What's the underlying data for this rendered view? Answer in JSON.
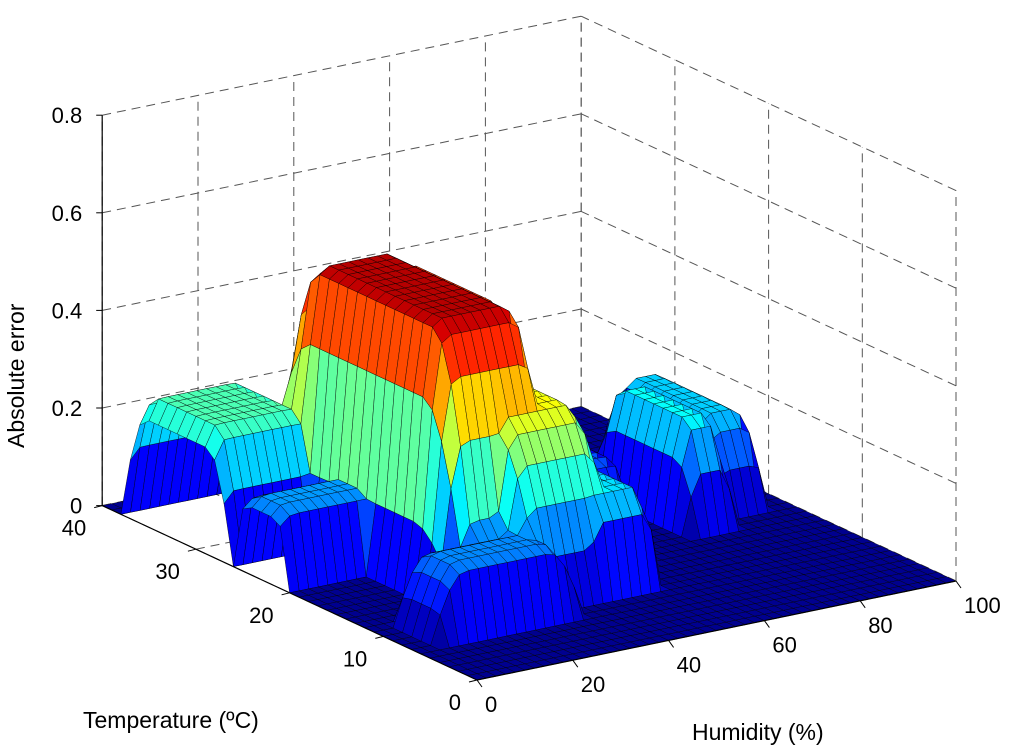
{
  "chart_data": {
    "type": "surface",
    "title": "",
    "xlabel": "Humidity (%)",
    "ylabel": "Temperature (ºC)",
    "zlabel": "Absolute error",
    "x_ticks": [
      "0",
      "20",
      "40",
      "60",
      "80",
      "100"
    ],
    "y_ticks": [
      "0",
      "10",
      "20",
      "30",
      "40"
    ],
    "z_ticks": [
      "0",
      "0.2",
      "0.4",
      "0.6",
      "0.8"
    ],
    "xlim": [
      0,
      100
    ],
    "ylim": [
      0,
      40
    ],
    "zlim": [
      0,
      0.8
    ],
    "grid": true,
    "colormap": "jet",
    "features": [
      {
        "humidity_center": 30,
        "humidity_width": 13,
        "temperature_center": 22,
        "temperature_width": 11,
        "peak_error": 0.55
      },
      {
        "humidity_center": 40,
        "humidity_width": 9,
        "temperature_center": 25,
        "temperature_width": 8,
        "peak_error": 0.5
      },
      {
        "humidity_center": 38,
        "humidity_width": 12,
        "temperature_center": 20,
        "temperature_width": 12,
        "peak_error": 0.36
      },
      {
        "humidity_center": 10,
        "humidity_width": 14,
        "temperature_center": 32,
        "temperature_width": 6,
        "peak_error": 0.26
      },
      {
        "humidity_center": 14,
        "humidity_width": 20,
        "temperature_center": 23,
        "temperature_width": 3,
        "peak_error": 0.16
      },
      {
        "humidity_center": 20,
        "humidity_width": 16,
        "temperature_center": 9,
        "temperature_width": 3,
        "peak_error": 0.15
      },
      {
        "humidity_center": 52,
        "humidity_width": 6,
        "temperature_center": 28,
        "temperature_width": 6,
        "peak_error": 0.25
      },
      {
        "humidity_center": 48,
        "humidity_width": 8,
        "temperature_center": 12,
        "temperature_width": 4,
        "peak_error": 0.2
      },
      {
        "humidity_center": 80,
        "humidity_width": 5,
        "temperature_center": 21,
        "temperature_width": 6,
        "peak_error": 0.22
      },
      {
        "humidity_center": 90,
        "humidity_width": 6,
        "temperature_center": 24,
        "temperature_width": 7,
        "peak_error": 0.19
      },
      {
        "humidity_center": 67,
        "humidity_width": 5,
        "temperature_center": 25,
        "temperature_width": 6,
        "peak_error": 0.12
      }
    ]
  }
}
